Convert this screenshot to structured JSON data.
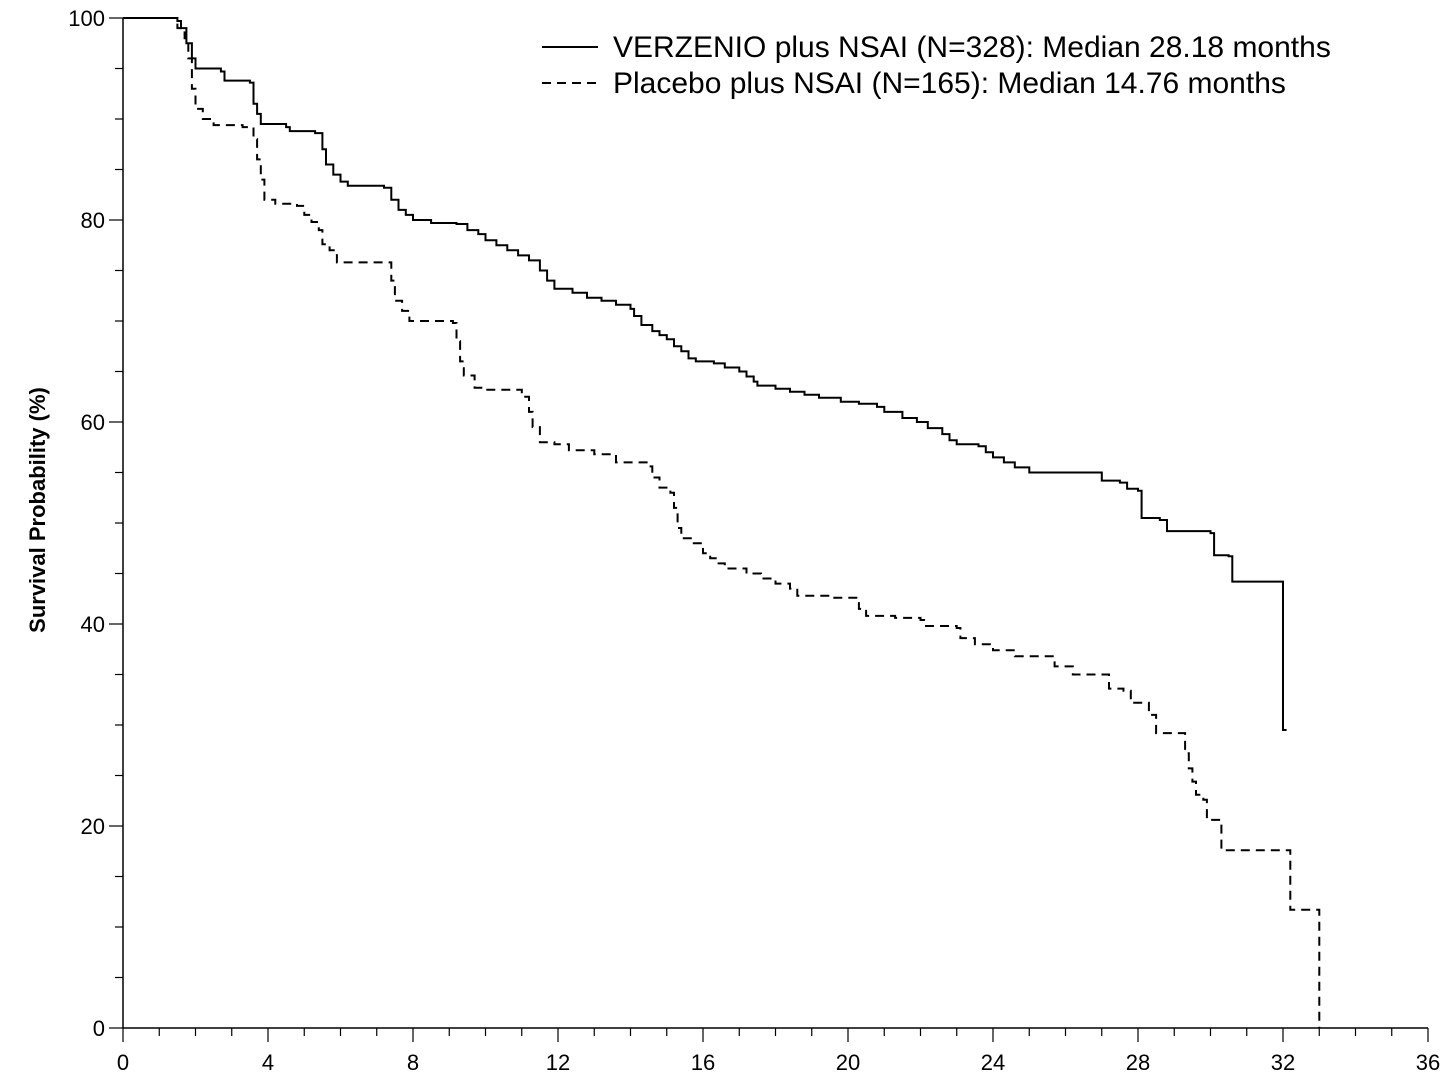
{
  "chart_data": {
    "type": "line",
    "ylabel": "Survival Probability (%)",
    "xlabel": "",
    "xlim": [
      0,
      36
    ],
    "ylim": [
      0,
      100
    ],
    "x_ticks": [
      0,
      4,
      8,
      12,
      16,
      20,
      24,
      28,
      32,
      36
    ],
    "y_ticks": [
      0,
      20,
      40,
      60,
      80,
      100
    ],
    "x_minor_step": 1,
    "y_minor_step": 5,
    "grid": false,
    "legend_position": "top-right",
    "series": [
      {
        "name": "VERZENIO plus NSAI (N=328): Median 28.18 months",
        "style": "solid",
        "color": "#000000",
        "points": [
          [
            0,
            100
          ],
          [
            1.2,
            100
          ],
          [
            1.5,
            99.7
          ],
          [
            1.6,
            99
          ],
          [
            1.75,
            97.5
          ],
          [
            1.9,
            96
          ],
          [
            2.0,
            95
          ],
          [
            2.7,
            94.7
          ],
          [
            2.8,
            93.8
          ],
          [
            3.5,
            93.6
          ],
          [
            3.6,
            91.5
          ],
          [
            3.7,
            90.5
          ],
          [
            3.8,
            89.5
          ],
          [
            4.5,
            89.2
          ],
          [
            4.6,
            88.8
          ],
          [
            5.3,
            88.6
          ],
          [
            5.5,
            87
          ],
          [
            5.6,
            85.5
          ],
          [
            5.8,
            84.5
          ],
          [
            6.0,
            83.8
          ],
          [
            6.2,
            83.4
          ],
          [
            7.2,
            83.2
          ],
          [
            7.4,
            82
          ],
          [
            7.6,
            81
          ],
          [
            7.8,
            80.5
          ],
          [
            8.0,
            80
          ],
          [
            8.5,
            79.7
          ],
          [
            9.2,
            79.6
          ],
          [
            9.5,
            79
          ],
          [
            9.8,
            78.6
          ],
          [
            10.0,
            78
          ],
          [
            10.3,
            77.5
          ],
          [
            10.6,
            77
          ],
          [
            10.9,
            76.5
          ],
          [
            11.2,
            76
          ],
          [
            11.5,
            75
          ],
          [
            11.7,
            74
          ],
          [
            11.9,
            73.2
          ],
          [
            12.4,
            72.8
          ],
          [
            12.8,
            72.3
          ],
          [
            13.2,
            72
          ],
          [
            13.6,
            71.6
          ],
          [
            14.0,
            71.2
          ],
          [
            14.1,
            70.5
          ],
          [
            14.3,
            69.6
          ],
          [
            14.6,
            69
          ],
          [
            14.8,
            68.6
          ],
          [
            15.0,
            68.2
          ],
          [
            15.2,
            67.5
          ],
          [
            15.4,
            67
          ],
          [
            15.6,
            66.3
          ],
          [
            15.8,
            66
          ],
          [
            16.3,
            65.8
          ],
          [
            16.6,
            65.4
          ],
          [
            17.0,
            65
          ],
          [
            17.2,
            64.5
          ],
          [
            17.4,
            64
          ],
          [
            17.5,
            63.6
          ],
          [
            18.0,
            63.3
          ],
          [
            18.4,
            63
          ],
          [
            18.8,
            62.7
          ],
          [
            19.2,
            62.4
          ],
          [
            19.8,
            62
          ],
          [
            20.3,
            61.8
          ],
          [
            20.8,
            61.5
          ],
          [
            21.0,
            61
          ],
          [
            21.5,
            60.4
          ],
          [
            21.9,
            60
          ],
          [
            22.2,
            59.4
          ],
          [
            22.6,
            58.8
          ],
          [
            22.8,
            58.2
          ],
          [
            23.0,
            57.8
          ],
          [
            23.6,
            57.6
          ],
          [
            23.8,
            57
          ],
          [
            24.0,
            56.5
          ],
          [
            24.3,
            56
          ],
          [
            24.6,
            55.5
          ],
          [
            25.0,
            55
          ],
          [
            26.0,
            55
          ],
          [
            26.5,
            55
          ],
          [
            27.0,
            54.2
          ],
          [
            27.5,
            54
          ],
          [
            27.7,
            53.4
          ],
          [
            28.0,
            53.2
          ],
          [
            28.1,
            50.5
          ],
          [
            28.6,
            50.3
          ],
          [
            28.8,
            49.2
          ],
          [
            30.0,
            49
          ],
          [
            30.1,
            46.8
          ],
          [
            30.5,
            46.7
          ],
          [
            30.6,
            44.2
          ],
          [
            31.1,
            44.2
          ],
          [
            32.0,
            44.2
          ],
          [
            32.0,
            29.5
          ],
          [
            32.1,
            29.5
          ]
        ]
      },
      {
        "name": "Placebo plus NSAI (N=165): Median 14.76 months",
        "style": "dashed",
        "color": "#000000",
        "points": [
          [
            0,
            100
          ],
          [
            1.3,
            100
          ],
          [
            1.5,
            99
          ],
          [
            1.7,
            98
          ],
          [
            1.8,
            96
          ],
          [
            1.9,
            93
          ],
          [
            2.0,
            91
          ],
          [
            2.2,
            90
          ],
          [
            2.5,
            89.4
          ],
          [
            3.3,
            89.2
          ],
          [
            3.6,
            88
          ],
          [
            3.7,
            86
          ],
          [
            3.8,
            84
          ],
          [
            3.9,
            82
          ],
          [
            4.2,
            81.6
          ],
          [
            4.8,
            81.4
          ],
          [
            5.0,
            80.5
          ],
          [
            5.2,
            79.8
          ],
          [
            5.4,
            79
          ],
          [
            5.5,
            77.6
          ],
          [
            5.7,
            77
          ],
          [
            5.9,
            75.8
          ],
          [
            7.2,
            75.8
          ],
          [
            7.4,
            74
          ],
          [
            7.5,
            72
          ],
          [
            7.7,
            71
          ],
          [
            7.9,
            70
          ],
          [
            9.1,
            69.8
          ],
          [
            9.2,
            68
          ],
          [
            9.3,
            66
          ],
          [
            9.4,
            64.6
          ],
          [
            9.7,
            63.4
          ],
          [
            10.0,
            63.2
          ],
          [
            10.7,
            63.2
          ],
          [
            11.0,
            62.5
          ],
          [
            11.2,
            61
          ],
          [
            11.3,
            59.5
          ],
          [
            11.5,
            58
          ],
          [
            11.9,
            57.8
          ],
          [
            12.3,
            57.2
          ],
          [
            13.0,
            56.8
          ],
          [
            13.6,
            56
          ],
          [
            14.5,
            55.6
          ],
          [
            14.6,
            54.5
          ],
          [
            14.8,
            53.5
          ],
          [
            15.1,
            53
          ],
          [
            15.2,
            51.5
          ],
          [
            15.3,
            49.5
          ],
          [
            15.4,
            48.5
          ],
          [
            15.7,
            48
          ],
          [
            16.0,
            47
          ],
          [
            16.2,
            46.5
          ],
          [
            16.4,
            46
          ],
          [
            16.6,
            45.5
          ],
          [
            17.2,
            45
          ],
          [
            17.6,
            44.5
          ],
          [
            18.0,
            44
          ],
          [
            18.4,
            43.5
          ],
          [
            18.6,
            42.8
          ],
          [
            19.5,
            42.6
          ],
          [
            20.0,
            42.6
          ],
          [
            20.3,
            41.5
          ],
          [
            20.5,
            40.8
          ],
          [
            21.3,
            40.6
          ],
          [
            22.0,
            40.4
          ],
          [
            22.1,
            39.8
          ],
          [
            23.0,
            39.6
          ],
          [
            23.1,
            38.6
          ],
          [
            23.5,
            38
          ],
          [
            24.0,
            37.4
          ],
          [
            24.6,
            36.8
          ],
          [
            25.6,
            36.8
          ],
          [
            25.7,
            35.8
          ],
          [
            26.2,
            35
          ],
          [
            27.0,
            35
          ],
          [
            27.2,
            33.6
          ],
          [
            27.6,
            33.4
          ],
          [
            27.8,
            32.2
          ],
          [
            28.3,
            31
          ],
          [
            28.5,
            29.2
          ],
          [
            29.2,
            29.2
          ],
          [
            29.3,
            27.2
          ],
          [
            29.4,
            25.7
          ],
          [
            29.5,
            24.4
          ],
          [
            29.6,
            23.1
          ],
          [
            29.8,
            22.6
          ],
          [
            29.9,
            20.6
          ],
          [
            30.2,
            20.6
          ],
          [
            30.3,
            17.6
          ],
          [
            32.0,
            17.6
          ],
          [
            32.2,
            11.7
          ],
          [
            33.0,
            11.7
          ],
          [
            33.0,
            0
          ]
        ]
      }
    ]
  }
}
